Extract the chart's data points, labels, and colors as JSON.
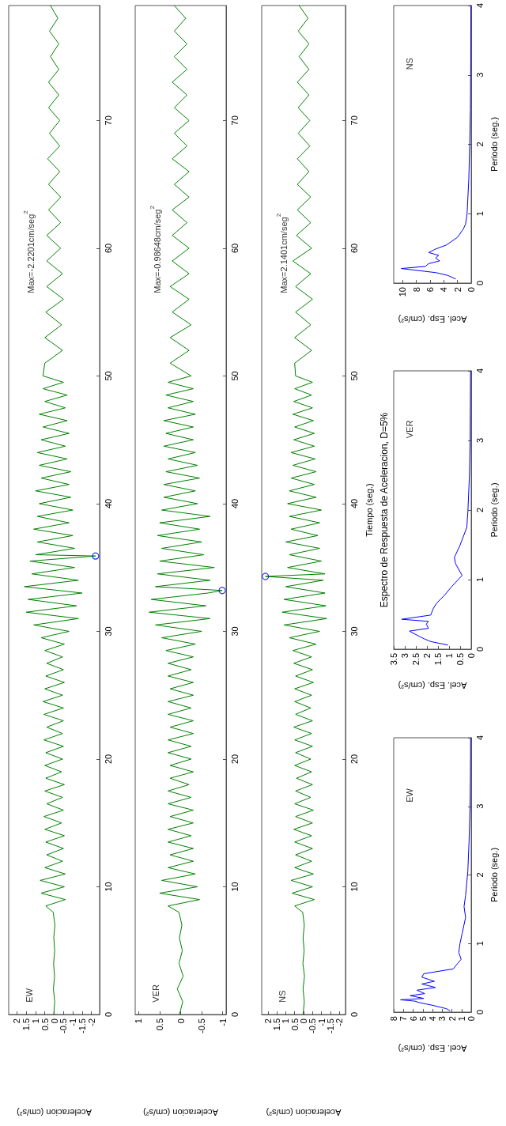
{
  "chart_data": [
    {
      "type": "line",
      "xlabel": "Aceleracion (cm/s²)",
      "xlim": [
        2.44,
        -2.44
      ],
      "xticks": [
        2,
        1.5,
        1,
        0.5,
        0,
        -0.5,
        -1,
        -1.5,
        -2
      ],
      "ylim": [
        0,
        79
      ],
      "yticks": [
        0,
        10,
        20,
        30,
        40,
        50,
        60,
        70
      ],
      "annotations": [
        "EW",
        "Max=-2.2201cm/seg$^{2}$"
      ],
      "series": [
        {
          "color": "#008000",
          "values": [
            0,
            1,
            2,
            3,
            4,
            5,
            6,
            7,
            8,
            8.5,
            9,
            9.5,
            10,
            10.5,
            11,
            11.5,
            12,
            12.5,
            13,
            13.5,
            14,
            14.5,
            15,
            15.5,
            16,
            16.5,
            17,
            17.5,
            18,
            18.5,
            19,
            19.5,
            20,
            20.5,
            21,
            21.5,
            22,
            22.5,
            23,
            23.5,
            24,
            24.5,
            25,
            25.5,
            26,
            26.5,
            27,
            27.5,
            28,
            28.5,
            29,
            29.5,
            30,
            30.5,
            31,
            31.5,
            32,
            32.5,
            33,
            33.5,
            34,
            34.5,
            35,
            35.5,
            35.9,
            36,
            36.5,
            37,
            37.5,
            38,
            38.5,
            39,
            39.5,
            40,
            40.5,
            41,
            41.5,
            42,
            42.5,
            43,
            43.5,
            44,
            44.5,
            45,
            45.5,
            46,
            46.5,
            47,
            47.5,
            48,
            48.5,
            49,
            49.5,
            50,
            51,
            52,
            53,
            54,
            55,
            56,
            57,
            58,
            59,
            60,
            61,
            62,
            63,
            64,
            65,
            66,
            67,
            68,
            69,
            70,
            71,
            72,
            73,
            74,
            75,
            76,
            77,
            78,
            79
          ],
          "x": [
            0.02,
            -0.03,
            0.04,
            -0.02,
            0.03,
            -0.03,
            0.02,
            -0.04,
            0.05,
            0.45,
            -0.6,
            0.7,
            -0.55,
            0.75,
            -0.6,
            0.5,
            -0.45,
            0.4,
            -0.5,
            0.45,
            -0.55,
            0.5,
            -0.4,
            0.55,
            -0.5,
            0.4,
            -0.45,
            0.5,
            -0.55,
            0.45,
            -0.4,
            0.5,
            -0.45,
            0.45,
            -0.5,
            0.55,
            -0.45,
            0.4,
            -0.5,
            0.55,
            -0.5,
            0.6,
            -0.45,
            0.5,
            -0.55,
            0.45,
            -0.5,
            0.4,
            -0.45,
            0.5,
            -0.55,
            0.7,
            -0.8,
            1.1,
            -1.3,
            1.5,
            -1.2,
            1.4,
            -1.5,
            1.6,
            -1.3,
            1.2,
            -1.1,
            1.3,
            -2.2201,
            1.0,
            -1.1,
            0.9,
            -1.0,
            1.1,
            -0.8,
            0.9,
            -1.0,
            0.8,
            -0.9,
            1.0,
            -0.8,
            0.7,
            -0.9,
            0.8,
            -0.7,
            0.9,
            -0.6,
            0.7,
            -0.8,
            0.6,
            -0.7,
            0.8,
            -0.6,
            0.5,
            -0.7,
            0.6,
            -0.5,
            0.6,
            0.5,
            -0.45,
            0.5,
            -0.4,
            0.45,
            -0.5,
            0.4,
            -0.45,
            0.4,
            -0.35,
            0.4,
            -0.35,
            0.3,
            -0.35,
            0.3,
            -0.3,
            0.35,
            -0.3,
            0.25,
            -0.3,
            0.3,
            -0.25,
            0.3,
            -0.25,
            0.2,
            -0.25,
            0.25,
            -0.2,
            0.2
          ]
        },
        {
          "type": "scatter",
          "color": "#0000ff",
          "marker": "circle",
          "x": [
            -2.2201
          ],
          "values": [
            35.9
          ]
        }
      ]
    },
    {
      "type": "line",
      "xlabel": "Aceleracion (cm/s²)",
      "xlim": [
        1.08,
        -1.08
      ],
      "xticks": [
        1,
        0.5,
        0,
        -0.5,
        -1
      ],
      "ylim": [
        0,
        79
      ],
      "yticks": [
        0,
        10,
        20,
        30,
        40,
        50,
        60,
        70
      ],
      "annotations": [
        "VER",
        "Max=-0.98648cm/seg$^{2}$"
      ],
      "series": [
        {
          "color": "#008000",
          "values": [
            0,
            1,
            2,
            3,
            4,
            5,
            6,
            7,
            8,
            8.5,
            9,
            9.5,
            10,
            10.5,
            11,
            11.5,
            12,
            12.5,
            13,
            13.5,
            14,
            14.5,
            15,
            15.5,
            16,
            16.5,
            17,
            17.5,
            18,
            18.5,
            19,
            19.5,
            20,
            20.5,
            21,
            21.5,
            22,
            22.5,
            23,
            23.5,
            24,
            24.5,
            25,
            25.5,
            26,
            26.5,
            27,
            27.5,
            28,
            28.5,
            29,
            29.5,
            30,
            30.5,
            31,
            31.5,
            32,
            32.5,
            33,
            33.2,
            33.5,
            34,
            34.5,
            35,
            35.5,
            36,
            36.5,
            37,
            37.5,
            38,
            38.5,
            39,
            39.5,
            40,
            40.5,
            41,
            41.5,
            42,
            42.5,
            43,
            43.5,
            44,
            44.5,
            45,
            45.5,
            46,
            46.5,
            47,
            47.5,
            48,
            48.5,
            49,
            49.5,
            50,
            51,
            52,
            53,
            54,
            55,
            56,
            57,
            58,
            59,
            60,
            61,
            62,
            63,
            64,
            65,
            66,
            67,
            68,
            69,
            70,
            71,
            72,
            73,
            74,
            75,
            76,
            77,
            78,
            79
          ],
          "x": [
            0.03,
            -0.05,
            0.08,
            -0.06,
            0.04,
            -0.04,
            0.03,
            -0.03,
            0.04,
            0.3,
            -0.45,
            0.5,
            -0.4,
            0.45,
            -0.35,
            0.3,
            -0.3,
            0.25,
            -0.3,
            0.3,
            -0.25,
            0.3,
            -0.3,
            0.25,
            -0.3,
            0.3,
            -0.25,
            0.3,
            -0.2,
            0.25,
            -0.3,
            0.25,
            -0.25,
            0.3,
            -0.25,
            0.3,
            -0.3,
            0.25,
            -0.3,
            0.3,
            -0.25,
            0.3,
            -0.3,
            0.25,
            -0.3,
            0.3,
            -0.25,
            0.3,
            -0.3,
            0.35,
            -0.35,
            0.45,
            -0.5,
            0.6,
            -0.7,
            0.75,
            -0.6,
            0.7,
            -0.65,
            -0.98648,
            0.6,
            -0.7,
            0.55,
            -0.8,
            0.5,
            -0.55,
            0.45,
            -0.5,
            0.55,
            -0.45,
            0.5,
            -0.7,
            0.45,
            -0.4,
            0.4,
            -0.35,
            0.4,
            -0.45,
            0.35,
            -0.4,
            0.3,
            -0.35,
            0.4,
            -0.3,
            0.35,
            -0.3,
            0.4,
            -0.35,
            0.3,
            -0.3,
            0.35,
            -0.3,
            0.3,
            -0.25,
            0.25,
            -0.2,
            0.25,
            -0.25,
            0.2,
            -0.2,
            0.25,
            -0.2,
            0.2,
            -0.2,
            0.2,
            -0.15,
            0.2,
            -0.2,
            0.15,
            -0.2,
            0.2,
            -0.15,
            0.15,
            -0.2,
            0.15,
            -0.15,
            0.2,
            -0.15,
            0.15,
            -0.15,
            0.15,
            -0.12,
            0.15
          ]
        },
        {
          "type": "scatter",
          "color": "#0000ff",
          "marker": "circle",
          "x": [
            -0.98648
          ],
          "values": [
            33.2
          ]
        }
      ]
    },
    {
      "type": "line",
      "xlabel": "Aceleracion (cm/s²)",
      "ylabel": "Tiempo (seg.)",
      "xlim": [
        2.35,
        -2.35
      ],
      "xticks": [
        2,
        1.5,
        1,
        0.5,
        0,
        -0.5,
        -1,
        -1.5,
        -2
      ],
      "ylim": [
        0,
        79
      ],
      "yticks": [
        0,
        10,
        20,
        30,
        40,
        50,
        60,
        70
      ],
      "annotations": [
        "NS",
        "Max=2.1401cm/seg$^{2}$"
      ],
      "series": [
        {
          "color": "#008000",
          "values": [
            0,
            1,
            2,
            3,
            4,
            5,
            6,
            7,
            8,
            8.5,
            9,
            9.5,
            10,
            10.5,
            11,
            11.5,
            12,
            12.5,
            13,
            13.5,
            14,
            14.5,
            15,
            15.5,
            16,
            16.5,
            17,
            17.5,
            18,
            18.5,
            19,
            19.5,
            20,
            20.5,
            21,
            21.5,
            22,
            22.5,
            23,
            23.5,
            24,
            24.5,
            25,
            25.5,
            26,
            26.5,
            27,
            27.5,
            28,
            28.5,
            29,
            29.5,
            30,
            30.5,
            31,
            31.5,
            32,
            32.5,
            33,
            33.5,
            34,
            34.3,
            34.5,
            35,
            35.5,
            36,
            36.5,
            37,
            37.5,
            38,
            38.5,
            39,
            39.5,
            40,
            40.5,
            41,
            41.5,
            42,
            42.5,
            43,
            43.5,
            44,
            44.5,
            45,
            45.5,
            46,
            46.5,
            47,
            47.5,
            48,
            48.5,
            49,
            49.5,
            50,
            51,
            52,
            53,
            54,
            55,
            56,
            57,
            58,
            59,
            60,
            61,
            62,
            63,
            64,
            65,
            66,
            67,
            68,
            69,
            70,
            71,
            72,
            73,
            74,
            75,
            76,
            77,
            78,
            79
          ],
          "x": [
            0.03,
            -0.04,
            0.03,
            -0.05,
            0.04,
            -0.03,
            0.03,
            -0.04,
            0.05,
            0.5,
            -0.6,
            0.65,
            -0.5,
            0.7,
            -0.55,
            0.5,
            -0.45,
            0.45,
            -0.5,
            0.5,
            -0.45,
            0.55,
            -0.5,
            0.45,
            -0.55,
            0.5,
            -0.4,
            0.45,
            -0.5,
            0.4,
            -0.45,
            0.5,
            -0.4,
            0.45,
            -0.5,
            0.5,
            -0.45,
            0.55,
            -0.5,
            0.45,
            -0.4,
            0.5,
            -0.45,
            0.5,
            -0.55,
            0.45,
            -0.5,
            0.55,
            -0.45,
            0.6,
            -0.7,
            0.8,
            -0.9,
            1.1,
            -1.3,
            1.2,
            -1.25,
            1.1,
            -1.2,
            1.0,
            -1.1,
            2.1401,
            -1.2,
            0.9,
            -1.0,
            0.8,
            -0.9,
            1.0,
            -0.8,
            0.7,
            -0.9,
            0.8,
            -1.0,
            0.9,
            -0.7,
            0.8,
            -0.6,
            0.7,
            -0.7,
            0.6,
            -0.65,
            0.7,
            -0.6,
            0.55,
            -0.6,
            0.5,
            -0.55,
            0.6,
            -0.5,
            0.55,
            -0.45,
            0.5,
            -0.5,
            0.45,
            0.5,
            -0.45,
            0.5,
            -0.4,
            0.45,
            -0.5,
            0.45,
            -0.4,
            0.6,
            -0.45,
            0.4,
            -0.4,
            0.35,
            -0.4,
            0.35,
            -0.3,
            0.35,
            -0.35,
            0.3,
            -0.35,
            0.3,
            -0.3,
            0.35,
            -0.3,
            0.25,
            -0.3,
            0.3,
            -0.25,
            0.25
          ]
        },
        {
          "type": "scatter",
          "color": "#0000ff",
          "marker": "circle",
          "x": [
            2.1401
          ],
          "values": [
            34.3
          ]
        }
      ]
    },
    {
      "type": "line",
      "xlabel": "Acel. Esp. (cm/s²)",
      "ylabel": "Periodo (seg.)",
      "xlim": [
        8,
        0
      ],
      "xticks": [
        8,
        7,
        6,
        5,
        4,
        3,
        2,
        1,
        0
      ],
      "ylim": [
        0,
        4
      ],
      "yticks": [
        0,
        1,
        2,
        3,
        4
      ],
      "annotations": [
        "EW"
      ],
      "series": [
        {
          "color": "#0000ff",
          "values": [
            0.02,
            0.05,
            0.1,
            0.14,
            0.16,
            0.18,
            0.2,
            0.24,
            0.27,
            0.32,
            0.36,
            0.41,
            0.45,
            0.51,
            0.56,
            0.63,
            0.71,
            0.77,
            0.87,
            1.0,
            1.15,
            1.38,
            1.54,
            1.7,
            2.05,
            2.5,
            3,
            3.5,
            4
          ],
          "x": [
            2.2,
            2.55,
            4.0,
            5.4,
            5.8,
            7.3,
            4.9,
            6.3,
            4.8,
            5.6,
            3.7,
            5.1,
            3.8,
            5.1,
            4.9,
            1.86,
            1.4,
            1.04,
            1.28,
            1.16,
            0.93,
            0.58,
            0.74,
            0.58,
            0.35,
            0.22,
            0.12,
            0.08,
            0.06
          ]
        }
      ]
    },
    {
      "type": "line",
      "title": "Espectro de Respuesta de Aceleracion, D=5%",
      "xlabel": "Acel. Esp. (cm/s²)",
      "ylabel": "Periodo (seg.)",
      "xlim": [
        3.5,
        0
      ],
      "xticks": [
        3.5,
        3,
        2.5,
        2,
        1.5,
        1,
        0.5,
        0
      ],
      "ylim": [
        0,
        4
      ],
      "yticks": [
        0,
        1,
        2,
        3,
        4
      ],
      "annotations": [
        "VER"
      ],
      "series": [
        {
          "color": "#0000ff",
          "values": [
            0.06,
            0.11,
            0.15,
            0.21,
            0.26,
            0.3,
            0.36,
            0.4,
            0.43,
            0.49,
            0.58,
            0.66,
            0.77,
            0.89,
            1.06,
            1.23,
            1.32,
            1.49,
            1.75,
            1.98,
            2.5,
            3,
            4
          ],
          "x": [
            1.06,
            1.83,
            2.13,
            2.5,
            2.79,
            1.93,
            2.03,
            1.93,
            3.14,
            1.83,
            1.72,
            1.57,
            1.22,
            0.91,
            0.41,
            0.71,
            0.76,
            0.51,
            0.2,
            0.15,
            0.08,
            0.05,
            0.03
          ]
        }
      ]
    },
    {
      "type": "line",
      "xlabel": "Acel. Esp. (cm/s²)",
      "ylabel": "Periodo (seg.)",
      "xlim": [
        11.3,
        0
      ],
      "xticks": [
        10,
        8,
        6,
        4,
        2,
        0
      ],
      "ylim": [
        0,
        4
      ],
      "yticks": [
        0,
        1,
        2,
        3,
        4
      ],
      "annotations": [
        "NS"
      ],
      "series": [
        {
          "color": "#0000ff",
          "values": [
            0.06,
            0.11,
            0.15,
            0.21,
            0.24,
            0.28,
            0.32,
            0.36,
            0.4,
            0.44,
            0.49,
            0.55,
            0.66,
            0.78,
            0.85,
            1.0,
            1.5,
            2,
            2.5,
            3,
            4
          ],
          "x": [
            2.3,
            3.4,
            5.1,
            10.2,
            6.7,
            6.2,
            4.6,
            5.2,
            4.75,
            6.2,
            5.2,
            3.6,
            2.0,
            1.15,
            0.82,
            0.6,
            0.35,
            0.22,
            0.12,
            0.08,
            0.05
          ]
        }
      ]
    }
  ]
}
